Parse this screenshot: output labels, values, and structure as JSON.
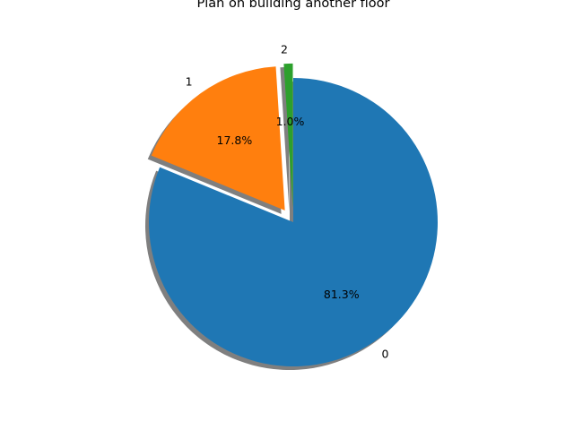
{
  "chart_data": {
    "type": "pie",
    "title": "Plan on building another floor",
    "categories": [
      "0",
      "1",
      "2"
    ],
    "values": [
      81.3,
      17.8,
      1.0
    ],
    "percent_labels": [
      "81.3%",
      "17.8%",
      "1.0%"
    ],
    "colors": [
      "#1f77b4",
      "#ff7f0e",
      "#2ca02c"
    ],
    "explode": [
      0,
      0.1,
      0.1
    ],
    "shadow": true,
    "start_angle_deg": 90,
    "direction": "clockwise",
    "legend": "none"
  }
}
